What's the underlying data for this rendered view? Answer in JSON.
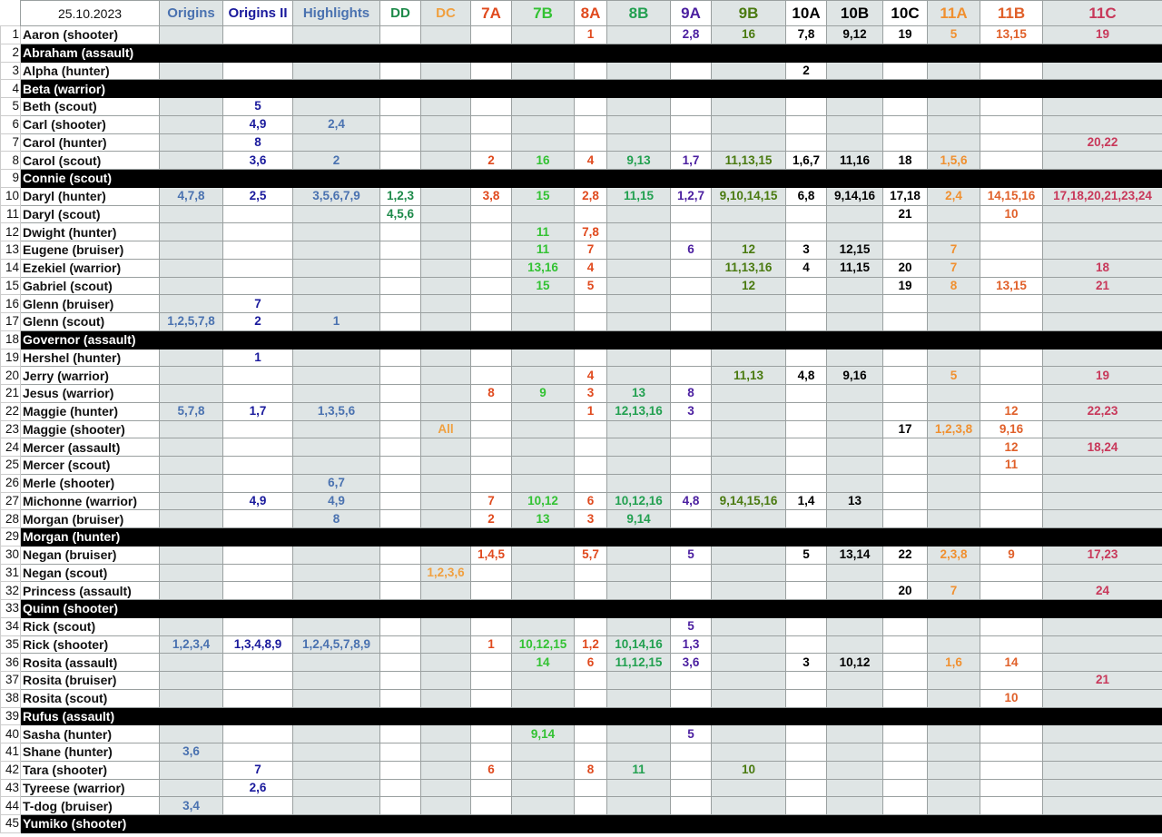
{
  "sheet": {
    "date": "25.10.2023",
    "columns": [
      {
        "label": "Origins",
        "color": "#4a72b0"
      },
      {
        "label": "Origins II",
        "color": "#1a1a9c"
      },
      {
        "label": "Highlights",
        "color": "#4a72b0"
      },
      {
        "label": "DD",
        "color": "#1e8a4a"
      },
      {
        "label": "DC",
        "color": "#f0a040"
      },
      {
        "label": "7A",
        "color": "#e04a1e"
      },
      {
        "label": "7B",
        "color": "#33c233"
      },
      {
        "label": "8A",
        "color": "#e04a1e"
      },
      {
        "label": "8B",
        "color": "#22a050"
      },
      {
        "label": "9A",
        "color": "#4b1fa0"
      },
      {
        "label": "9B",
        "color": "#4a7a10"
      },
      {
        "label": "10A",
        "color": "#000000"
      },
      {
        "label": "10B",
        "color": "#000000"
      },
      {
        "label": "10C",
        "color": "#000000"
      },
      {
        "label": "11A",
        "color": "#f09030"
      },
      {
        "label": "11B",
        "color": "#e0602a"
      },
      {
        "label": "11C",
        "color": "#c8385a"
      }
    ],
    "rows": [
      {
        "n": "1",
        "name": "Aaron (shooter)",
        "values": [
          "",
          "",
          "",
          "",
          "",
          "",
          "",
          "1",
          "",
          "2,8",
          "16",
          "7,8",
          "9,12",
          "19",
          "5",
          "13,15",
          "19"
        ]
      },
      {
        "n": "2",
        "name": "Abraham (assault)",
        "blocked": true
      },
      {
        "n": "3",
        "name": "Alpha (hunter)",
        "values": [
          "",
          "",
          "",
          "",
          "",
          "",
          "",
          "",
          "",
          "",
          "",
          "2",
          "",
          "",
          "",
          "",
          ""
        ]
      },
      {
        "n": "4",
        "name": "Beta (warrior)",
        "blocked": true
      },
      {
        "n": "5",
        "name": "Beth (scout)",
        "values": [
          "",
          "5",
          "",
          "",
          "",
          "",
          "",
          "",
          "",
          "",
          "",
          "",
          "",
          "",
          "",
          "",
          ""
        ]
      },
      {
        "n": "6",
        "name": "Carl (shooter)",
        "values": [
          "",
          "4,9",
          "2,4",
          "",
          "",
          "",
          "",
          "",
          "",
          "",
          "",
          "",
          "",
          "",
          "",
          "",
          ""
        ]
      },
      {
        "n": "7",
        "name": "Carol (hunter)",
        "values": [
          "",
          "8",
          "",
          "",
          "",
          "",
          "",
          "",
          "",
          "",
          "",
          "",
          "",
          "",
          "",
          "",
          "20,22"
        ]
      },
      {
        "n": "8",
        "name": "Carol (scout)",
        "values": [
          "",
          "3,6",
          "2",
          "",
          "",
          "2",
          "16",
          "4",
          "9,13",
          "1,7",
          "11,13,15",
          "1,6,7",
          "11,16",
          "18",
          "1,5,6",
          "",
          ""
        ]
      },
      {
        "n": "9",
        "name": "Connie (scout)",
        "blocked": true
      },
      {
        "n": "10",
        "name": "Daryl (hunter)",
        "values": [
          "4,7,8",
          "2,5",
          "3,5,6,7,9",
          "1,2,3",
          "",
          "3,8",
          "15",
          "2,8",
          "11,15",
          "1,2,7",
          "9,10,14,15",
          "6,8",
          "9,14,16",
          "17,18",
          "2,4",
          "14,15,16",
          "17,18,20,21,23,24"
        ]
      },
      {
        "n": "11",
        "name": "Daryl (scout)",
        "values": [
          "",
          "",
          "",
          "4,5,6",
          "",
          "",
          "",
          "",
          "",
          "",
          "",
          "",
          "",
          "21",
          "",
          "10",
          ""
        ]
      },
      {
        "n": "12",
        "name": "Dwight (hunter)",
        "values": [
          "",
          "",
          "",
          "",
          "",
          "",
          "11",
          "7,8",
          "",
          "",
          "",
          "",
          "",
          "",
          "",
          "",
          ""
        ]
      },
      {
        "n": "13",
        "name": "Eugene (bruiser)",
        "values": [
          "",
          "",
          "",
          "",
          "",
          "",
          "11",
          "7",
          "",
          "6",
          "12",
          "3",
          "12,15",
          "",
          "7",
          "",
          ""
        ]
      },
      {
        "n": "14",
        "name": "Ezekiel (warrior)",
        "values": [
          "",
          "",
          "",
          "",
          "",
          "",
          "13,16",
          "4",
          "",
          "",
          "11,13,16",
          "4",
          "11,15",
          "20",
          "7",
          "",
          "18"
        ]
      },
      {
        "n": "15",
        "name": "Gabriel (scout)",
        "values": [
          "",
          "",
          "",
          "",
          "",
          "",
          "15",
          "5",
          "",
          "",
          "12",
          "",
          "",
          "19",
          "8",
          "13,15",
          "21"
        ]
      },
      {
        "n": "16",
        "name": "Glenn (bruiser)",
        "values": [
          "",
          "7",
          "",
          "",
          "",
          "",
          "",
          "",
          "",
          "",
          "",
          "",
          "",
          "",
          "",
          "",
          ""
        ]
      },
      {
        "n": "17",
        "name": "Glenn (scout)",
        "values": [
          "1,2,5,7,8",
          "2",
          "1",
          "",
          "",
          "",
          "",
          "",
          "",
          "",
          "",
          "",
          "",
          "",
          "",
          "",
          ""
        ]
      },
      {
        "n": "18",
        "name": "Governor (assault)",
        "blocked": true
      },
      {
        "n": "19",
        "name": "Hershel (hunter)",
        "values": [
          "",
          "1",
          "",
          "",
          "",
          "",
          "",
          "",
          "",
          "",
          "",
          "",
          "",
          "",
          "",
          "",
          ""
        ]
      },
      {
        "n": "20",
        "name": "Jerry (warrior)",
        "values": [
          "",
          "",
          "",
          "",
          "",
          "",
          "",
          "4",
          "",
          "",
          "11,13",
          "4,8",
          "9,16",
          "",
          "5",
          "",
          "19"
        ]
      },
      {
        "n": "21",
        "name": "Jesus (warrior)",
        "values": [
          "",
          "",
          "",
          "",
          "",
          "8",
          "9",
          "3",
          "13",
          "8",
          "",
          "",
          "",
          "",
          "",
          "",
          ""
        ]
      },
      {
        "n": "22",
        "name": "Maggie (hunter)",
        "values": [
          "5,7,8",
          "1,7",
          "1,3,5,6",
          "",
          "",
          "",
          "",
          "1",
          "12,13,16",
          "3",
          "",
          "",
          "",
          "",
          "",
          "12",
          "22,23"
        ]
      },
      {
        "n": "23",
        "name": "Maggie (shooter)",
        "values": [
          "",
          "",
          "",
          "",
          "All",
          "",
          "",
          "",
          "",
          "",
          "",
          "",
          "",
          "17",
          "1,2,3,8",
          "9,16",
          ""
        ]
      },
      {
        "n": "24",
        "name": "Mercer (assault)",
        "values": [
          "",
          "",
          "",
          "",
          "",
          "",
          "",
          "",
          "",
          "",
          "",
          "",
          "",
          "",
          "",
          "12",
          "18,24"
        ]
      },
      {
        "n": "25",
        "name": "Mercer (scout)",
        "values": [
          "",
          "",
          "",
          "",
          "",
          "",
          "",
          "",
          "",
          "",
          "",
          "",
          "",
          "",
          "",
          "11",
          ""
        ]
      },
      {
        "n": "26",
        "name": "Merle (shooter)",
        "values": [
          "",
          "",
          "6,7",
          "",
          "",
          "",
          "",
          "",
          "",
          "",
          "",
          "",
          "",
          "",
          "",
          "",
          ""
        ]
      },
      {
        "n": "27",
        "name": "Michonne (warrior)",
        "values": [
          "",
          "4,9",
          "4,9",
          "",
          "",
          "7",
          "10,12",
          "6",
          "10,12,16",
          "4,8",
          "9,14,15,16",
          "1,4",
          "13",
          "",
          "",
          "",
          ""
        ]
      },
      {
        "n": "28",
        "name": "Morgan (bruiser)",
        "values": [
          "",
          "",
          "8",
          "",
          "",
          "2",
          "13",
          "3",
          "9,14",
          "",
          "",
          "",
          "",
          "",
          "",
          "",
          ""
        ]
      },
      {
        "n": "29",
        "name": "Morgan (hunter)",
        "blocked": true
      },
      {
        "n": "30",
        "name": "Negan (bruiser)",
        "values": [
          "",
          "",
          "",
          "",
          "",
          "1,4,5",
          "",
          "5,7",
          "",
          "5",
          "",
          "5",
          "13,14",
          "22",
          "2,3,8",
          "9",
          "17,23"
        ]
      },
      {
        "n": "31",
        "name": "Negan (scout)",
        "values": [
          "",
          "",
          "",
          "",
          "1,2,3,6",
          "",
          "",
          "",
          "",
          "",
          "",
          "",
          "",
          "",
          "",
          "",
          ""
        ]
      },
      {
        "n": "32",
        "name": "Princess (assault)",
        "values": [
          "",
          "",
          "",
          "",
          "",
          "",
          "",
          "",
          "",
          "",
          "",
          "",
          "",
          "20",
          "7",
          "",
          "24"
        ]
      },
      {
        "n": "33",
        "name": "Quinn (shooter)",
        "blocked": true
      },
      {
        "n": "34",
        "name": "Rick (scout)",
        "values": [
          "",
          "",
          "",
          "",
          "",
          "",
          "",
          "",
          "",
          "5",
          "",
          "",
          "",
          "",
          "",
          "",
          ""
        ]
      },
      {
        "n": "35",
        "name": "Rick (shooter)",
        "values": [
          "1,2,3,4",
          "1,3,4,8,9",
          "1,2,4,5,7,8,9",
          "",
          "",
          "1",
          "10,12,15",
          "1,2",
          "10,14,16",
          "1,3",
          "",
          "",
          "",
          "",
          "",
          "",
          ""
        ]
      },
      {
        "n": "36",
        "name": "Rosita (assault)",
        "values": [
          "",
          "",
          "",
          "",
          "",
          "",
          "14",
          "6",
          "11,12,15",
          "3,6",
          "",
          "3",
          "10,12",
          "",
          "1,6",
          "14",
          ""
        ]
      },
      {
        "n": "37",
        "name": "Rosita (bruiser)",
        "values": [
          "",
          "",
          "",
          "",
          "",
          "",
          "",
          "",
          "",
          "",
          "",
          "",
          "",
          "",
          "",
          "",
          "21"
        ]
      },
      {
        "n": "38",
        "name": "Rosita (scout)",
        "values": [
          "",
          "",
          "",
          "",
          "",
          "",
          "",
          "",
          "",
          "",
          "",
          "",
          "",
          "",
          "",
          "10",
          ""
        ]
      },
      {
        "n": "39",
        "name": "Rufus (assault)",
        "blocked": true
      },
      {
        "n": "40",
        "name": "Sasha (hunter)",
        "values": [
          "",
          "",
          "",
          "",
          "",
          "",
          "9,14",
          "",
          "",
          "5",
          "",
          "",
          "",
          "",
          "",
          "",
          ""
        ]
      },
      {
        "n": "41",
        "name": "Shane (hunter)",
        "values": [
          "3,6",
          "",
          "",
          "",
          "",
          "",
          "",
          "",
          "",
          "",
          "",
          "",
          "",
          "",
          "",
          "",
          ""
        ]
      },
      {
        "n": "42",
        "name": "Tara (shooter)",
        "values": [
          "",
          "7",
          "",
          "",
          "",
          "6",
          "",
          "8",
          "11",
          "",
          "10",
          "",
          "",
          "",
          "",
          "",
          ""
        ]
      },
      {
        "n": "43",
        "name": "Tyreese (warrior)",
        "values": [
          "",
          "2,6",
          "",
          "",
          "",
          "",
          "",
          "",
          "",
          "",
          "",
          "",
          "",
          "",
          "",
          "",
          ""
        ]
      },
      {
        "n": "44",
        "name": "T-dog (bruiser)",
        "values": [
          "3,4",
          "",
          "",
          "",
          "",
          "",
          "",
          "",
          "",
          "",
          "",
          "",
          "",
          "",
          "",
          "",
          ""
        ]
      },
      {
        "n": "45",
        "name": "Yumiko (shooter)",
        "blocked": true
      }
    ]
  }
}
